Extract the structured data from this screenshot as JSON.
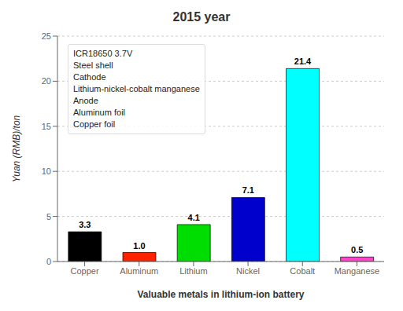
{
  "chart_data": {
    "type": "bar",
    "title": "2015 year",
    "xlabel": "Valuable metals in lithium-ion battery",
    "ylabel": "Yuan (RMB)/ton",
    "categories": [
      "Copper",
      "Aluminum",
      "Lithium",
      "Nickel",
      "Cobalt",
      "Manganese"
    ],
    "values": [
      3.3,
      1.0,
      4.1,
      7.1,
      21.4,
      0.5
    ],
    "value_labels": [
      "3.3",
      "1.0",
      "4.1",
      "7.1",
      "21.4",
      "0.5"
    ],
    "data_labels": true,
    "colors": [
      "#000000",
      "#ff2200",
      "#00dd00",
      "#0000cc",
      "#00ffff",
      "#ff44cc"
    ],
    "ylim": [
      0,
      25
    ],
    "yticks": [
      0,
      5,
      10,
      15,
      20,
      25
    ],
    "grid": true,
    "annotations": [
      "ICR18650 3.7V",
      "Steel shell",
      "Cathode",
      "Lithium-nickel-cobalt manganese",
      "Anode",
      "Aluminum foil",
      "Copper foil"
    ]
  }
}
